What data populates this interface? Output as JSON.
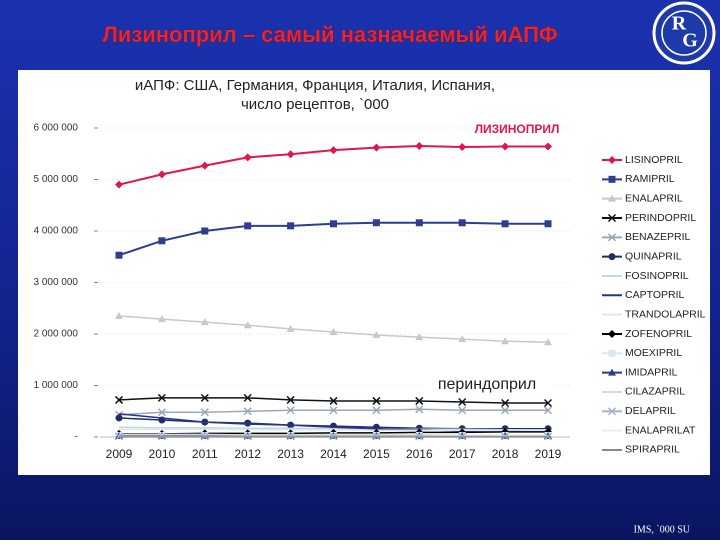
{
  "header": {
    "title": "Лизиноприл – самый назначаемый иАПФ",
    "logo": [
      "R",
      "G"
    ]
  },
  "chart_data": {
    "type": "line",
    "title": [
      "иАПФ: США, Германия, Франция, Италия, Испания,",
      "число рецептов, `000"
    ],
    "categories": [
      "2009",
      "2010",
      "2011",
      "2012",
      "2013",
      "2014",
      "2015",
      "2016",
      "2017",
      "2018",
      "2019"
    ],
    "ylim": [
      0,
      6000000
    ],
    "yticks": [
      {
        "value": 0,
        "label": "-"
      },
      {
        "value": 1000000,
        "label": "1 000 000"
      },
      {
        "value": 2000000,
        "label": "2 000 000"
      },
      {
        "value": 3000000,
        "label": "3 000 000"
      },
      {
        "value": 4000000,
        "label": "4 000 000"
      },
      {
        "value": 5000000,
        "label": "5 000 000"
      },
      {
        "value": 6000000,
        "label": "6 000 000"
      }
    ],
    "grid": true,
    "legend": "right",
    "annotations": [
      "ЛИЗИНОПРИЛ",
      "периндоприл"
    ],
    "series": [
      {
        "name": "LISINOPRIL",
        "color": "#e0174a",
        "marker": "diamond",
        "values": [
          4900000,
          5100000,
          5270000,
          5430000,
          5490000,
          5570000,
          5620000,
          5650000,
          5630000,
          5640000,
          5640000
        ]
      },
      {
        "name": "RAMIPRIL",
        "color": "#2e3d8f",
        "marker": "square",
        "values": [
          3530000,
          3810000,
          4000000,
          4100000,
          4100000,
          4140000,
          4160000,
          4160000,
          4160000,
          4140000,
          4140000
        ]
      },
      {
        "name": "ENALAPRIL",
        "color": "#c8c8c8",
        "marker": "triangle",
        "values": [
          2350000,
          2290000,
          2230000,
          2170000,
          2100000,
          2040000,
          1980000,
          1940000,
          1900000,
          1860000,
          1840000
        ]
      },
      {
        "name": "PERINDOPRIL",
        "color": "#111111",
        "marker": "x",
        "values": [
          720000,
          760000,
          760000,
          760000,
          720000,
          700000,
          700000,
          700000,
          680000,
          660000,
          660000
        ]
      },
      {
        "name": "BENAZEPRIL",
        "color": "#9aa7b8",
        "marker": "x",
        "values": [
          430000,
          480000,
          480000,
          500000,
          520000,
          520000,
          520000,
          540000,
          520000,
          520000,
          520000
        ]
      },
      {
        "name": "QUINAPRIL",
        "color": "#1f2d6b",
        "marker": "circle",
        "values": [
          370000,
          330000,
          290000,
          270000,
          230000,
          210000,
          190000,
          170000,
          160000,
          160000,
          160000
        ]
      },
      {
        "name": "FOSINOPRIL",
        "color": "#b9dde8",
        "marker": "none",
        "values": [
          190000,
          180000,
          180000,
          170000,
          170000,
          160000,
          160000,
          150000,
          150000,
          140000,
          140000
        ]
      },
      {
        "name": "CAPTOPRIL",
        "color": "#27358a",
        "marker": "none",
        "values": [
          450000,
          370000,
          290000,
          250000,
          230000,
          190000,
          160000,
          140000,
          120000,
          120000,
          100000
        ]
      },
      {
        "name": "TRANDOLAPRIL",
        "color": "#e6e6e6",
        "marker": "none",
        "values": [
          150000,
          150000,
          150000,
          140000,
          140000,
          140000,
          130000,
          130000,
          130000,
          120000,
          120000
        ]
      },
      {
        "name": "ZOFENOPRIL",
        "color": "#000000",
        "marker": "diamond",
        "values": [
          60000,
          60000,
          70000,
          70000,
          70000,
          80000,
          80000,
          90000,
          90000,
          100000,
          100000
        ]
      },
      {
        "name": "MOEXIPRIL",
        "color": "#d7ebf2",
        "marker": "square",
        "values": [
          30000,
          30000,
          30000,
          30000,
          30000,
          30000,
          30000,
          30000,
          30000,
          30000,
          30000
        ]
      },
      {
        "name": "IMIDAPRIL",
        "color": "#2a3c88",
        "marker": "triangle",
        "values": [
          20000,
          20000,
          20000,
          20000,
          20000,
          20000,
          20000,
          20000,
          20000,
          20000,
          20000
        ]
      },
      {
        "name": "CILAZAPRIL",
        "color": "#d8d8d8",
        "marker": "none",
        "values": [
          50000,
          50000,
          50000,
          40000,
          40000,
          40000,
          40000,
          40000,
          30000,
          30000,
          30000
        ]
      },
      {
        "name": "DELAPRIL",
        "color": "#a8b0d0",
        "marker": "x",
        "values": [
          10000,
          10000,
          10000,
          10000,
          10000,
          10000,
          10000,
          10000,
          10000,
          10000,
          10000
        ]
      },
      {
        "name": "ENALAPRILAT",
        "color": "#eeeeee",
        "marker": "none",
        "values": [
          5000,
          5000,
          5000,
          5000,
          5000,
          5000,
          5000,
          5000,
          5000,
          5000,
          5000
        ]
      },
      {
        "name": "SPIRAPRIL",
        "color": "#888888",
        "marker": "none",
        "values": [
          2000,
          2000,
          2000,
          2000,
          2000,
          2000,
          2000,
          2000,
          2000,
          2000,
          2000
        ]
      }
    ]
  },
  "footer": "IMS, `000 SU"
}
